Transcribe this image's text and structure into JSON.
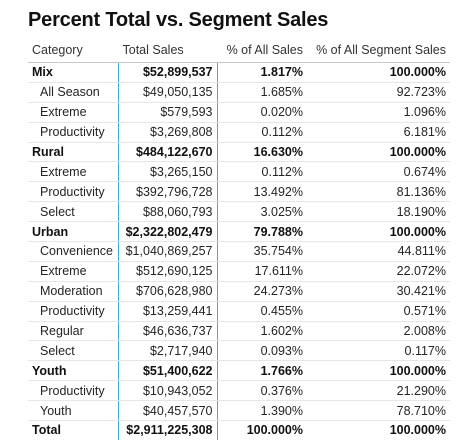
{
  "title": "Percent Total vs. Segment Sales",
  "columns": {
    "category": "Category",
    "total_sales": "Total Sales",
    "pct_all": "% of All Sales",
    "pct_segment": "% of All Segment Sales"
  },
  "rows": [
    {
      "type": "group",
      "category": "Mix",
      "total_sales": "$52,899,537",
      "pct_all": "1.817%",
      "pct_segment": "100.000%"
    },
    {
      "type": "item",
      "category": "All Season",
      "total_sales": "$49,050,135",
      "pct_all": "1.685%",
      "pct_segment": "92.723%"
    },
    {
      "type": "item",
      "category": "Extreme",
      "total_sales": "$579,593",
      "pct_all": "0.020%",
      "pct_segment": "1.096%"
    },
    {
      "type": "item",
      "category": "Productivity",
      "total_sales": "$3,269,808",
      "pct_all": "0.112%",
      "pct_segment": "6.181%"
    },
    {
      "type": "group",
      "category": "Rural",
      "total_sales": "$484,122,670",
      "pct_all": "16.630%",
      "pct_segment": "100.000%"
    },
    {
      "type": "item",
      "category": "Extreme",
      "total_sales": "$3,265,150",
      "pct_all": "0.112%",
      "pct_segment": "0.674%"
    },
    {
      "type": "item",
      "category": "Productivity",
      "total_sales": "$392,796,728",
      "pct_all": "13.492%",
      "pct_segment": "81.136%"
    },
    {
      "type": "item",
      "category": "Select",
      "total_sales": "$88,060,793",
      "pct_all": "3.025%",
      "pct_segment": "18.190%"
    },
    {
      "type": "group",
      "category": "Urban",
      "total_sales": "$2,322,802,479",
      "pct_all": "79.788%",
      "pct_segment": "100.000%"
    },
    {
      "type": "item",
      "category": "Convenience",
      "total_sales": "$1,040,869,257",
      "pct_all": "35.754%",
      "pct_segment": "44.811%"
    },
    {
      "type": "item",
      "category": "Extreme",
      "total_sales": "$512,690,125",
      "pct_all": "17.611%",
      "pct_segment": "22.072%"
    },
    {
      "type": "item",
      "category": "Moderation",
      "total_sales": "$706,628,980",
      "pct_all": "24.273%",
      "pct_segment": "30.421%"
    },
    {
      "type": "item",
      "category": "Productivity",
      "total_sales": "$13,259,441",
      "pct_all": "0.455%",
      "pct_segment": "0.571%"
    },
    {
      "type": "item",
      "category": "Regular",
      "total_sales": "$46,636,737",
      "pct_all": "1.602%",
      "pct_segment": "2.008%"
    },
    {
      "type": "item",
      "category": "Select",
      "total_sales": "$2,717,940",
      "pct_all": "0.093%",
      "pct_segment": "0.117%"
    },
    {
      "type": "group",
      "category": "Youth",
      "total_sales": "$51,400,622",
      "pct_all": "1.766%",
      "pct_segment": "100.000%"
    },
    {
      "type": "item",
      "category": "Productivity",
      "total_sales": "$10,943,052",
      "pct_all": "0.376%",
      "pct_segment": "21.290%"
    },
    {
      "type": "item",
      "category": "Youth",
      "total_sales": "$40,457,570",
      "pct_all": "1.390%",
      "pct_segment": "78.710%"
    },
    {
      "type": "grand",
      "category": "Total",
      "total_sales": "$2,911,225,308",
      "pct_all": "100.000%",
      "pct_segment": "100.000%"
    }
  ],
  "colors": {
    "selected_column_border": "#3ab1c8"
  }
}
